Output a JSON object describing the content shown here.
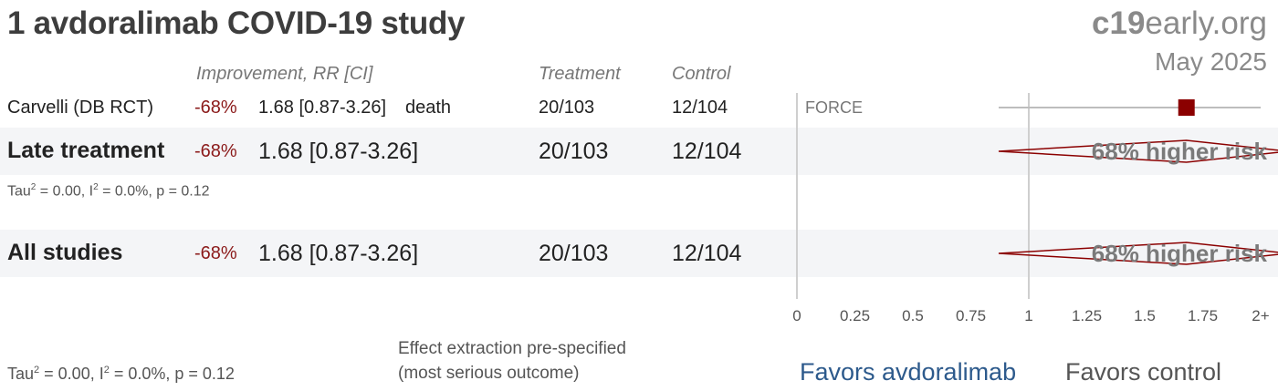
{
  "title": "1 avdoralimab COVID-19 study",
  "brand": {
    "bold": "c19",
    "rest": "early.org"
  },
  "date": "May 2025",
  "headers": {
    "improvement": "Improvement, RR [CI]",
    "treatment": "Treatment",
    "control": "Control"
  },
  "colors": {
    "impr": "#8b1a1a",
    "marker": "#8b0000",
    "favors_left": "#2d5a8c"
  },
  "rows": {
    "study": {
      "name": "Carvelli (DB RCT)",
      "impr": "-68%",
      "rr": "1.68 [0.87-3.26]",
      "outcome": "death",
      "treatment": "20/103",
      "control": "12/104",
      "trial": "FORCE"
    },
    "late": {
      "name": "Late treatment",
      "impr": "-68%",
      "rr": "1.68 [0.87-3.26]",
      "treatment": "20/103",
      "control": "12/104",
      "stats_tau": "Tau",
      "stats_rest": " = 0.00, I",
      "stats_end": " = 0.0%, p = 0.12",
      "risk_label": "68% higher risk"
    },
    "all": {
      "name": "All studies",
      "impr": "-68%",
      "rr": "1.68 [0.87-3.26]",
      "treatment": "20/103",
      "control": "12/104",
      "risk_label": "68% higher risk"
    }
  },
  "footer": {
    "stats_tau": "Tau",
    "stats_rest": " = 0.00, I",
    "stats_end": " = 0.0%, p = 0.12",
    "note_line1": "Effect extraction pre-specified",
    "note_line2": "(most serious outcome)",
    "favors_left": "Favors avdoralimab",
    "favors_right": "Favors control"
  },
  "chart_data": {
    "type": "forest",
    "x_axis": {
      "ticks": [
        "0",
        "0.25",
        "0.5",
        "0.75",
        "1",
        "1.25",
        "1.5",
        "1.75",
        "2+"
      ],
      "range": [
        0,
        2
      ],
      "reference_line": 1
    },
    "studies": [
      {
        "name": "Carvelli (DB RCT)",
        "rr": 1.68,
        "ci_low": 0.87,
        "ci_high": 3.26
      }
    ],
    "pooled": [
      {
        "name": "Late treatment",
        "rr": 1.68,
        "ci_low": 0.87,
        "ci_high": 3.26
      },
      {
        "name": "All studies",
        "rr": 1.68,
        "ci_low": 0.87,
        "ci_high": 3.26
      }
    ]
  }
}
